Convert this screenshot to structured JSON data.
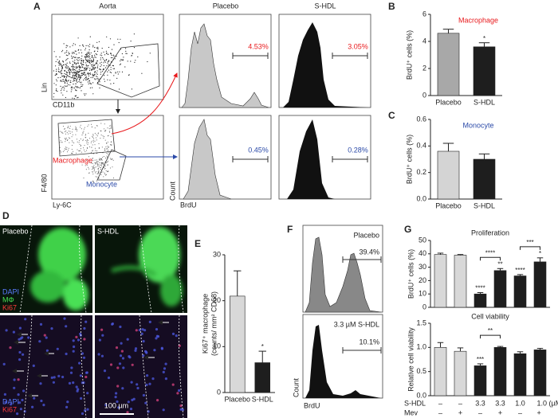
{
  "flow_A": {
    "letter": "A",
    "title": "Aorta",
    "lin": "Lin",
    "cd11b": "CD11b",
    "f480": "F4/80",
    "ly6c": "Ly-6C",
    "macrophage": "Macrophage",
    "monocyte": "Monocyte",
    "columns": [
      "Placebo",
      "S-HDL"
    ],
    "count": "Count",
    "brdu": "BrdU",
    "percents": [
      [
        "4.53%",
        "3.05%"
      ],
      [
        "0.45%",
        "0.28%"
      ]
    ]
  },
  "image_D": {
    "letter": "D",
    "columns": [
      "Placebo",
      "S-HDL"
    ],
    "stain_top": [
      "DAPI",
      "MΦ",
      "Ki67"
    ],
    "stain_bottom": [
      "DAPI",
      "Ki67"
    ],
    "scale_bar": "100 µm"
  },
  "flow_F": {
    "letter": "F",
    "rows": [
      {
        "label": "Placebo",
        "percent": "39.4%"
      },
      {
        "label": "3.3 µM S-HDL",
        "percent": "10.1%"
      }
    ],
    "count": "Count",
    "brdu": "BrdU"
  },
  "chart_data": [
    {
      "type": "bar",
      "panel": "B",
      "title": "Macrophage",
      "title_color": "#e8191c",
      "ylabel": "BrdU⁺ cells (%)",
      "categories": [
        "Placebo",
        "S-HDL"
      ],
      "values": [
        4.6,
        3.6
      ],
      "errors": [
        0.3,
        0.3
      ],
      "colors": [
        "#a8a8a8",
        "#1e1e1e"
      ],
      "significance": [
        null,
        "*"
      ],
      "ylim": [
        0,
        6
      ],
      "yticks": [
        0,
        2,
        4,
        6
      ]
    },
    {
      "type": "bar",
      "panel": "C",
      "title": "Monocyte",
      "title_color": "#2b4aa8",
      "ylabel": "BrdU⁺ cells (%)",
      "categories": [
        "Placebo",
        "S-HDL"
      ],
      "values": [
        0.36,
        0.3
      ],
      "errors": [
        0.06,
        0.04
      ],
      "colors": [
        "#d4d4d4",
        "#1e1e1e"
      ],
      "ylim": [
        0,
        0.6
      ],
      "yticks": [
        {
          "value": 0,
          "label": "0.0"
        },
        0.2,
        0.4,
        0.6
      ]
    },
    {
      "type": "bar",
      "panel": "E",
      "ylabel": [
        "Ki67⁺ macrophage",
        "(counts/ mm² CD68)"
      ],
      "categories": [
        "Placebo",
        "S-HDL"
      ],
      "values": [
        21,
        6.5
      ],
      "errors": [
        5.5,
        2.5
      ],
      "colors": [
        "#d8d8d8",
        "#1e1e1e"
      ],
      "significance": [
        null,
        "*"
      ],
      "ylim": [
        0,
        30
      ],
      "yticks": [
        0,
        10,
        20,
        30
      ]
    },
    {
      "type": "bar",
      "panel": "G",
      "title": "Proliferation",
      "ylabel": "BrdU⁺ cells (%)",
      "values": [
        39.5,
        39,
        10,
        27.5,
        23.5,
        34
      ],
      "errors": [
        1,
        0.5,
        1,
        1.5,
        1,
        3
      ],
      "colors": [
        "#d8d8d8",
        "#d8d8d8",
        "#1e1e1e",
        "#1e1e1e",
        "#1e1e1e",
        "#1e1e1e"
      ],
      "significance": [
        null,
        null,
        "****",
        "**",
        "****",
        "*"
      ],
      "brackets": [
        {
          "between": [
            2,
            3
          ],
          "label": "****"
        },
        {
          "between": [
            4,
            5
          ],
          "label": "***"
        }
      ],
      "ylim": [
        0,
        50
      ],
      "yticks": [
        0,
        10,
        20,
        30,
        40,
        50
      ]
    },
    {
      "type": "bar",
      "title": "Cell viability",
      "ylabel": "Relative cell viability",
      "values": [
        1.0,
        0.92,
        0.62,
        1.0,
        0.87,
        0.95
      ],
      "errors": [
        0.1,
        0.07,
        0.04,
        0.02,
        0.04,
        0.03
      ],
      "colors": [
        "#d8d8d8",
        "#d8d8d8",
        "#1e1e1e",
        "#1e1e1e",
        "#1e1e1e",
        "#1e1e1e"
      ],
      "significance": [
        null,
        null,
        "***",
        null,
        null,
        null
      ],
      "brackets": [
        {
          "between": [
            2,
            3
          ],
          "label": "**"
        }
      ],
      "ylim": [
        0,
        1.5
      ],
      "yticks": [
        {
          "value": 0,
          "label": "0.0"
        },
        0.5,
        {
          "value": 1,
          "label": "1.0"
        },
        1.5
      ],
      "rows": [
        {
          "label": "S-HDL",
          "cells": [
            "–",
            "–",
            "3.3",
            "3.3",
            "1.0",
            "1.0 (µM)"
          ]
        },
        {
          "label": "Mev",
          "cells": [
            "–",
            "+",
            "–",
            "+",
            "–",
            "+"
          ]
        }
      ]
    }
  ]
}
